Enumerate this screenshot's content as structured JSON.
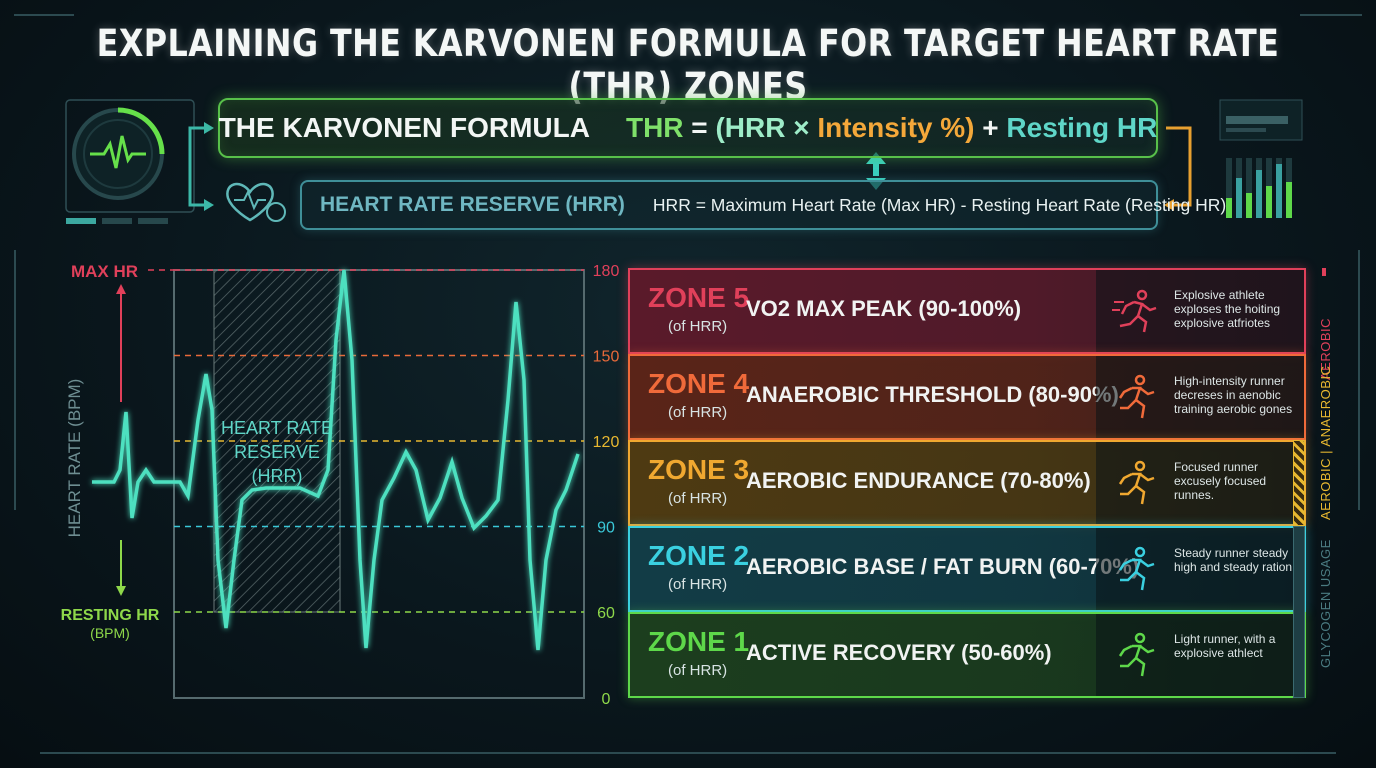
{
  "title": "EXPLAINING THE KARVONEN FORMULA FOR TARGET HEART RATE (THR) ZONES",
  "formula": {
    "name": "THE KARVONEN FORMULA",
    "thr": "THR",
    "equals": "=",
    "open": "(HRR ×",
    "intensity": "Intensity %)",
    "plus": "+",
    "resting": "Resting HR"
  },
  "hrr": {
    "label": "HEART RATE RESERVE (HRR)",
    "definition": "HRR = Maximum Heart Rate (Max HR) - Resting Heart Rate (Resting HR)"
  },
  "chart_data": {
    "type": "line",
    "ylabel": "HEART RATE (BPM)",
    "max_label": "MAX HR",
    "resting_label": "RESTING HR",
    "resting_unit": "(BPM)",
    "band_label": [
      "HEART RATE",
      "RESERVE",
      "(HRR)"
    ],
    "ylim": [
      0,
      180
    ],
    "yticks": [
      "180",
      "150",
      "120",
      "90",
      "60",
      "0"
    ],
    "reference_lines": [
      {
        "value": 180,
        "color": "#e0405a"
      },
      {
        "value": 150,
        "color": "#e86a3a"
      },
      {
        "value": 120,
        "color": "#e8b830"
      },
      {
        "value": 90,
        "color": "#3ac8d8"
      },
      {
        "value": 60,
        "color": "#8ed84a"
      }
    ],
    "colors": {
      "trace": "#4ee0c0",
      "band": "#7a8a8a"
    }
  },
  "zones": [
    {
      "name": "ZONE 5",
      "sub": "(of HRR)",
      "title": "VO2 MAX PEAK (90-100%)",
      "desc": "Explosive athlete exploses the hoiting explosive atfriotes",
      "color": "#e0405a",
      "bg": "#5a1a2a",
      "icon": "sprinter-icon"
    },
    {
      "name": "ZONE 4",
      "sub": "(of HRR)",
      "title": "ANAEROBIC THRESHOLD (80-90%)",
      "desc": "High-intensity runner decreses in aenobic training aerobic gones",
      "color": "#f06a3a",
      "bg": "#5a2418",
      "icon": "runner-icon"
    },
    {
      "name": "ZONE 3",
      "sub": "(of HRR)",
      "title": "AEROBIC ENDURANCE (70-80%)",
      "desc": "Focused runner excusely focused runnes.",
      "color": "#f0a830",
      "bg": "#4e3a12",
      "icon": "runner-icon"
    },
    {
      "name": "ZONE 2",
      "sub": "(of HRR)",
      "title": "AEROBIC BASE / FAT BURN (60-70%)",
      "desc": "Steady runner steady high and steady ration",
      "color": "#3ad0e0",
      "bg": "#123c46",
      "icon": "runner-icon"
    },
    {
      "name": "ZONE 1",
      "sub": "(of HRR)",
      "title": "ACTIVE RECOVERY (50-60%)",
      "desc": "Light runner, with a explosive athlect",
      "color": "#5ed84a",
      "bg": "#1c3e1e",
      "icon": "runner-icon"
    }
  ],
  "side_labels": {
    "aerobic_top": "AEROBIC",
    "aerobic_anaerobic": "AEROBIC | ANAEROBIC",
    "glycogen": "GLYCOGEN USAGE"
  }
}
